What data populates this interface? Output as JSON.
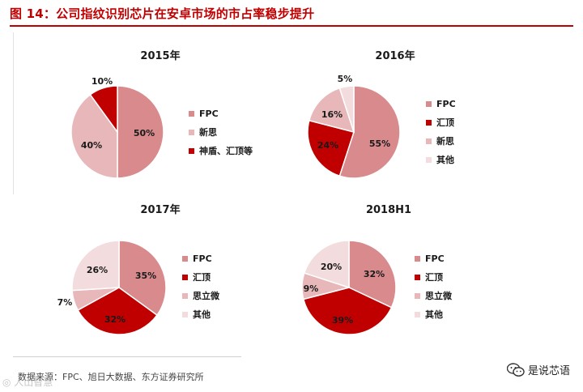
{
  "figure": {
    "title": "图 14：公司指纹识别芯片在安卓市场的市占率稳步提升"
  },
  "source": "数据来源：FPC、旭日大数据、东方证券研究所",
  "watermark": "◎ 人山智慧",
  "brand": {
    "icon": "wechat-icon",
    "text": "是说芯语"
  },
  "colors": {
    "title_red": "#c00000",
    "fpc": "#d88a8d",
    "goodix": "#c00000",
    "silead": "#e8b7b9",
    "other": "#f3dcdd",
    "shendun": "#c00000"
  },
  "chart_data": [
    {
      "type": "pie",
      "title": "2015年",
      "legend": "right",
      "slices": [
        {
          "label": "FPC",
          "value": 50,
          "label_text": "50%",
          "color": "#d88a8d"
        },
        {
          "label": "新思",
          "value": 40,
          "label_text": "40%",
          "color": "#e8b7b9"
        },
        {
          "label": "神盾、汇顶等",
          "value": 10,
          "label_text": "10%",
          "color": "#c00000"
        }
      ]
    },
    {
      "type": "pie",
      "title": "2016年",
      "legend": "right",
      "slices": [
        {
          "label": "FPC",
          "value": 55,
          "label_text": "55%",
          "color": "#d88a8d"
        },
        {
          "label": "汇顶",
          "value": 24,
          "label_text": "24%",
          "color": "#c00000"
        },
        {
          "label": "新思",
          "value": 16,
          "label_text": "16%",
          "color": "#e8b7b9"
        },
        {
          "label": "其他",
          "value": 5,
          "label_text": "5%",
          "color": "#f3dcdd"
        }
      ]
    },
    {
      "type": "pie",
      "title": "2017年",
      "legend": "right",
      "slices": [
        {
          "label": "FPC",
          "value": 35,
          "label_text": "35%",
          "color": "#d88a8d"
        },
        {
          "label": "汇顶",
          "value": 32,
          "label_text": "32%",
          "color": "#c00000"
        },
        {
          "label": "思立微",
          "value": 7,
          "label_text": "7%",
          "color": "#e8b7b9"
        },
        {
          "label": "其他",
          "value": 26,
          "label_text": "26%",
          "color": "#f3dcdd"
        }
      ]
    },
    {
      "type": "pie",
      "title": "2018H1",
      "legend": "right",
      "slices": [
        {
          "label": "FPC",
          "value": 32,
          "label_text": "32%",
          "color": "#d88a8d"
        },
        {
          "label": "汇顶",
          "value": 39,
          "label_text": "39%",
          "color": "#c00000"
        },
        {
          "label": "思立微",
          "value": 9,
          "label_text": "9%",
          "color": "#e8b7b9"
        },
        {
          "label": "其他",
          "value": 20,
          "label_text": "20%",
          "color": "#f3dcdd"
        }
      ]
    }
  ]
}
